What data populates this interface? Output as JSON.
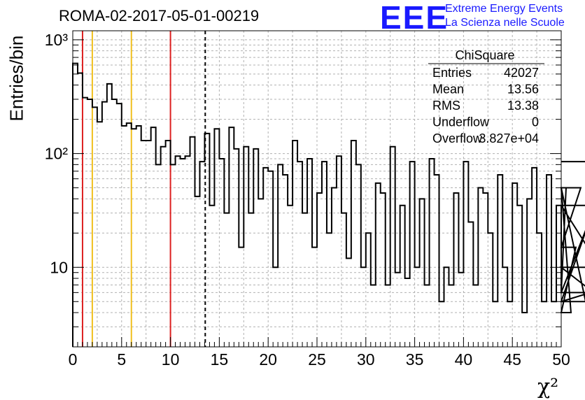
{
  "header": {
    "title": "ROMA-02-2017-05-01-00219",
    "logo_text": "EEE",
    "logo_line1": "Extreme Energy Events",
    "logo_line2": "La Scienza nelle Scuole",
    "logo_color": "#1a1aff"
  },
  "stats_box": {
    "title": "ChiSquare",
    "rows": [
      {
        "label": "Entries",
        "value": "42027"
      },
      {
        "label": "Mean",
        "value": "13.56"
      },
      {
        "label": "RMS",
        "value": "13.38"
      },
      {
        "label": "Underflow",
        "value": "0"
      },
      {
        "label": "Overflow",
        "value": "3.827e+04"
      }
    ]
  },
  "chart_data": {
    "type": "histogram",
    "xlabel": "χ²",
    "ylabel": "Entries/bin",
    "xlim": [
      0,
      50
    ],
    "ylim": [
      2,
      1200
    ],
    "log_y": true,
    "grid": true,
    "bin_width": 0.5,
    "x_ticks": [
      "0",
      "5",
      "10",
      "15",
      "20",
      "25",
      "30",
      "35",
      "40",
      "45",
      "50"
    ],
    "y_ticks": [
      "10",
      "10²",
      "10³"
    ],
    "values": [
      620,
      510,
      310,
      300,
      255,
      190,
      285,
      410,
      300,
      275,
      175,
      185,
      165,
      175,
      130,
      130,
      170,
      80,
      115,
      130,
      80,
      95,
      90,
      95,
      140,
      42,
      85,
      150,
      35,
      165,
      90,
      30,
      170,
      110,
      15,
      115,
      30,
      110,
      40,
      75,
      70,
      10,
      80,
      65,
      35,
      130,
      85,
      30,
      90,
      15,
      45,
      85,
      20,
      50,
      95,
      30,
      12,
      130,
      80,
      10,
      20,
      7,
      55,
      45,
      7,
      115,
      9,
      35,
      8,
      85,
      10,
      40,
      7,
      90,
      65,
      5,
      10,
      7,
      45,
      9,
      85,
      25,
      7,
      50,
      45,
      20,
      5,
      65,
      10,
      5,
      55,
      35,
      4,
      40,
      75,
      20,
      5,
      65,
      5,
      35,
      6,
      50,
      4,
      15,
      50,
      5,
      6,
      35,
      10,
      5,
      85
    ],
    "markers": [
      {
        "x": 1,
        "color": "#dd2020",
        "style": "solid"
      },
      {
        "x": 2,
        "color": "#f0c020",
        "style": "solid"
      },
      {
        "x": 6,
        "color": "#f0c020",
        "style": "solid"
      },
      {
        "x": 10,
        "color": "#dd2020",
        "style": "solid"
      },
      {
        "x": 13.56,
        "color": "#000000",
        "style": "dashed"
      }
    ]
  }
}
